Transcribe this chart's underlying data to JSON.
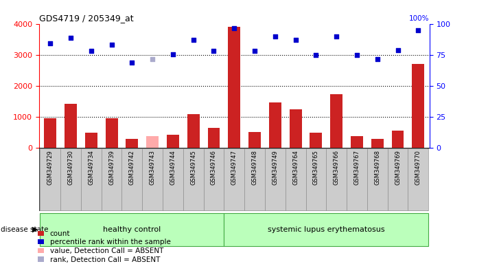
{
  "title": "GDS4719 / 205349_at",
  "samples": [
    "GSM349729",
    "GSM349730",
    "GSM349734",
    "GSM349739",
    "GSM349742",
    "GSM349743",
    "GSM349744",
    "GSM349745",
    "GSM349746",
    "GSM349747",
    "GSM349748",
    "GSM349749",
    "GSM349764",
    "GSM349765",
    "GSM349766",
    "GSM349767",
    "GSM349768",
    "GSM349769",
    "GSM349770"
  ],
  "bar_values": [
    950,
    1420,
    480,
    950,
    300,
    370,
    430,
    1080,
    650,
    3900,
    500,
    1470,
    1250,
    480,
    1720,
    380,
    300,
    550,
    2700
  ],
  "bar_absent": [
    false,
    false,
    false,
    false,
    false,
    true,
    false,
    false,
    false,
    false,
    false,
    false,
    false,
    false,
    false,
    false,
    false,
    false,
    false
  ],
  "dot_values": [
    3380,
    3540,
    3120,
    3320,
    2760,
    2870,
    3010,
    3490,
    3120,
    3850,
    3120,
    3590,
    3480,
    3000,
    3590,
    3000,
    2860,
    3150,
    3780
  ],
  "dot_absent": [
    false,
    false,
    false,
    false,
    false,
    true,
    false,
    false,
    false,
    false,
    false,
    false,
    false,
    false,
    false,
    false,
    false,
    false,
    false
  ],
  "healthy_count": 9,
  "lupus_count": 10,
  "ylim_left": [
    0,
    4000
  ],
  "ylim_right": [
    0,
    100
  ],
  "yticks_left": [
    0,
    1000,
    2000,
    3000,
    4000
  ],
  "yticks_right": [
    0,
    25,
    50,
    75,
    100
  ],
  "bar_color_normal": "#cc2222",
  "bar_color_absent": "#ffaaaa",
  "dot_color_normal": "#0000cc",
  "dot_color_absent": "#aaaacc",
  "healthy_label": "healthy control",
  "lupus_label": "systemic lupus erythematosus",
  "disease_state_label": "disease state",
  "healthy_bg": "#bbffbb",
  "lupus_bg": "#bbffbb",
  "tick_bg": "#cccccc",
  "legend_labels": [
    "count",
    "percentile rank within the sample",
    "value, Detection Call = ABSENT",
    "rank, Detection Call = ABSENT"
  ],
  "legend_colors": [
    "#cc2222",
    "#0000cc",
    "#ffaaaa",
    "#aaaacc"
  ],
  "bar_width": 0.6
}
